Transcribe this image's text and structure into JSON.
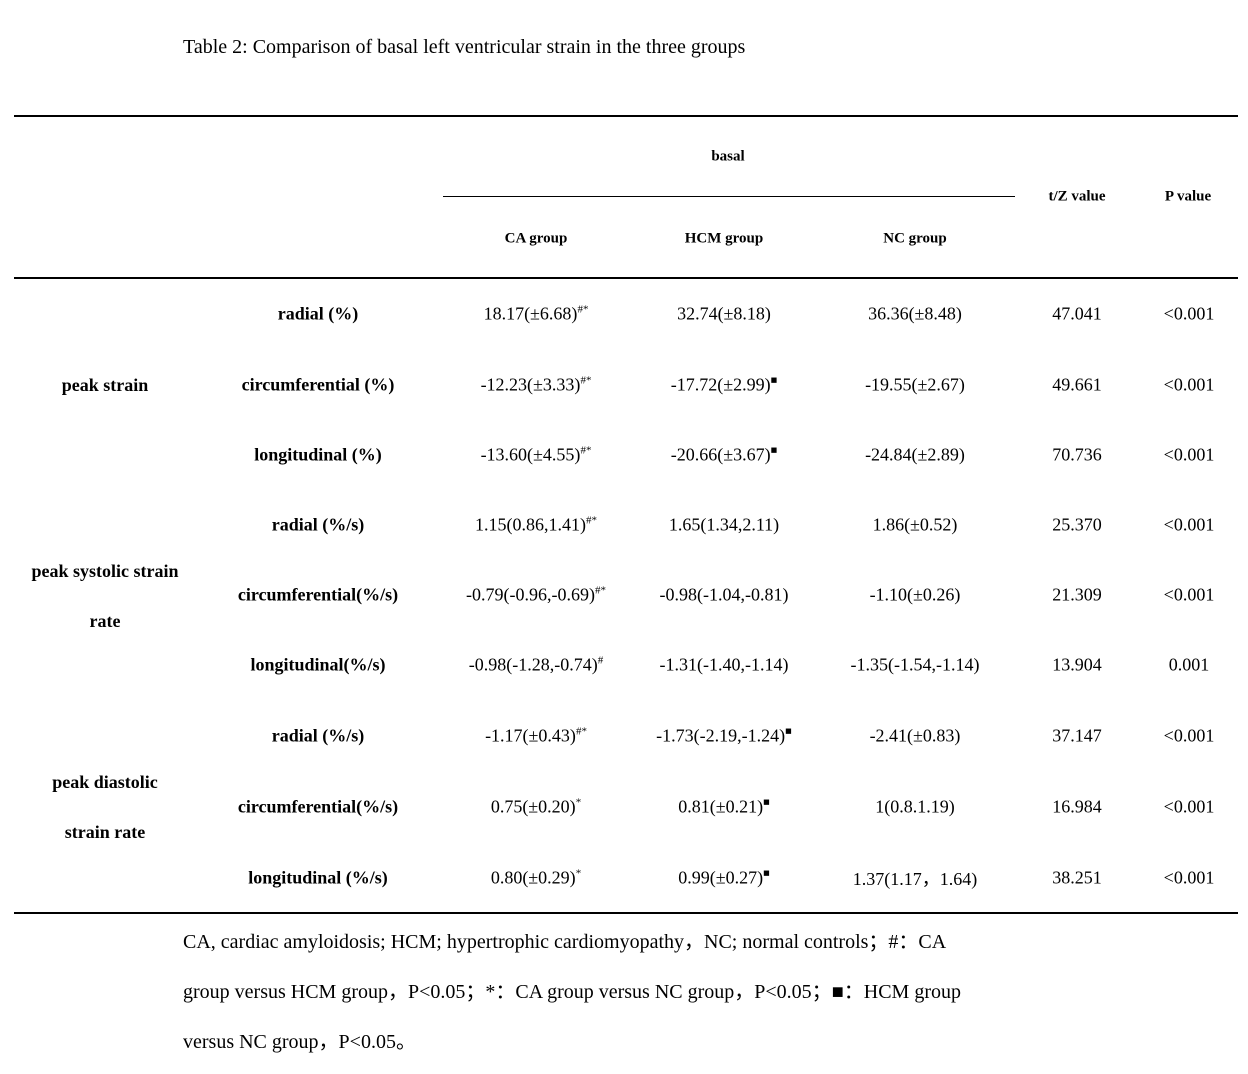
{
  "caption": "Table 2: Comparison of basal left ventricular strain in the three groups",
  "header": {
    "span_label": "basal",
    "columns": [
      "CA group",
      "HCM group",
      "NC group"
    ],
    "tz_label": "t/Z value",
    "p_label": "P value"
  },
  "groups": [
    {
      "label_lines": [
        "peak strain"
      ]
    },
    {
      "label_lines": [
        "peak systolic strain",
        "rate"
      ]
    },
    {
      "label_lines": [
        "peak diastolic",
        "strain rate"
      ]
    }
  ],
  "rows": [
    {
      "metric": "radial (%)",
      "ca": "18.17(±6.68)",
      "ca_mark": "#*",
      "hcm": "32.74(±8.18)",
      "hcm_mark": "",
      "nc": "36.36(±8.48)",
      "tz": "47.041",
      "p": "<0.001"
    },
    {
      "metric": "circumferential (%)",
      "ca": "-12.23(±3.33)",
      "ca_mark": "#*",
      "hcm": "-17.72(±2.99)",
      "hcm_mark": "■",
      "nc": "-19.55(±2.67)",
      "tz": "49.661",
      "p": "<0.001"
    },
    {
      "metric": "longitudinal (%)",
      "ca": "-13.60(±4.55)",
      "ca_mark": "#*",
      "hcm": "-20.66(±3.67)",
      "hcm_mark": "■",
      "nc": "-24.84(±2.89)",
      "tz": "70.736",
      "p": "<0.001"
    },
    {
      "metric": "radial (%/s)",
      "ca": "1.15(0.86,1.41)",
      "ca_mark": "#*",
      "hcm": "1.65(1.34,2.11)",
      "hcm_mark": "",
      "nc": "1.86(±0.52)",
      "tz": "25.370",
      "p": "<0.001"
    },
    {
      "metric": "circumferential(%/s)",
      "ca": "-0.79(-0.96,-0.69)",
      "ca_mark": "#*",
      "hcm": "-0.98(-1.04,-0.81)",
      "hcm_mark": "",
      "nc": "-1.10(±0.26)",
      "tz": "21.309",
      "p": "<0.001"
    },
    {
      "metric": "longitudinal(%/s)",
      "ca": "-0.98(-1.28,-0.74)",
      "ca_mark": "#",
      "hcm": "-1.31(-1.40,-1.14)",
      "hcm_mark": "",
      "nc": "-1.35(-1.54,-1.14)",
      "tz": "13.904",
      "p": "0.001"
    },
    {
      "metric": "radial (%/s)",
      "ca": "-1.17(±0.43)",
      "ca_mark": "#*",
      "hcm": "-1.73(-2.19,-1.24)",
      "hcm_mark": "■",
      "nc": "-2.41(±0.83)",
      "tz": "37.147",
      "p": "<0.001"
    },
    {
      "metric": "circumferential(%/s)",
      "ca": "0.75(±0.20)",
      "ca_mark": "*",
      "hcm": "0.81(±0.21)",
      "hcm_mark": "■",
      "nc": "1(0.8.1.19)",
      "tz": "16.984",
      "p": "<0.001"
    },
    {
      "metric": "longitudinal (%/s)",
      "ca": "0.80(±0.29)",
      "ca_mark": "*",
      "hcm": "0.99(±0.27)",
      "hcm_mark": "■",
      "nc": "1.37(1.17，1.64)",
      "tz": "38.251",
      "p": "<0.001"
    }
  ],
  "footnote_lines": [
    "CA, cardiac amyloidosis; HCM; hypertrophic cardiomyopathy，NC; normal controls；#：CA",
    "group versus HCM group，P<0.05；*：CA group versus NC group，P<0.05；■：HCM group",
    "versus NC group，P<0.05。"
  ]
}
